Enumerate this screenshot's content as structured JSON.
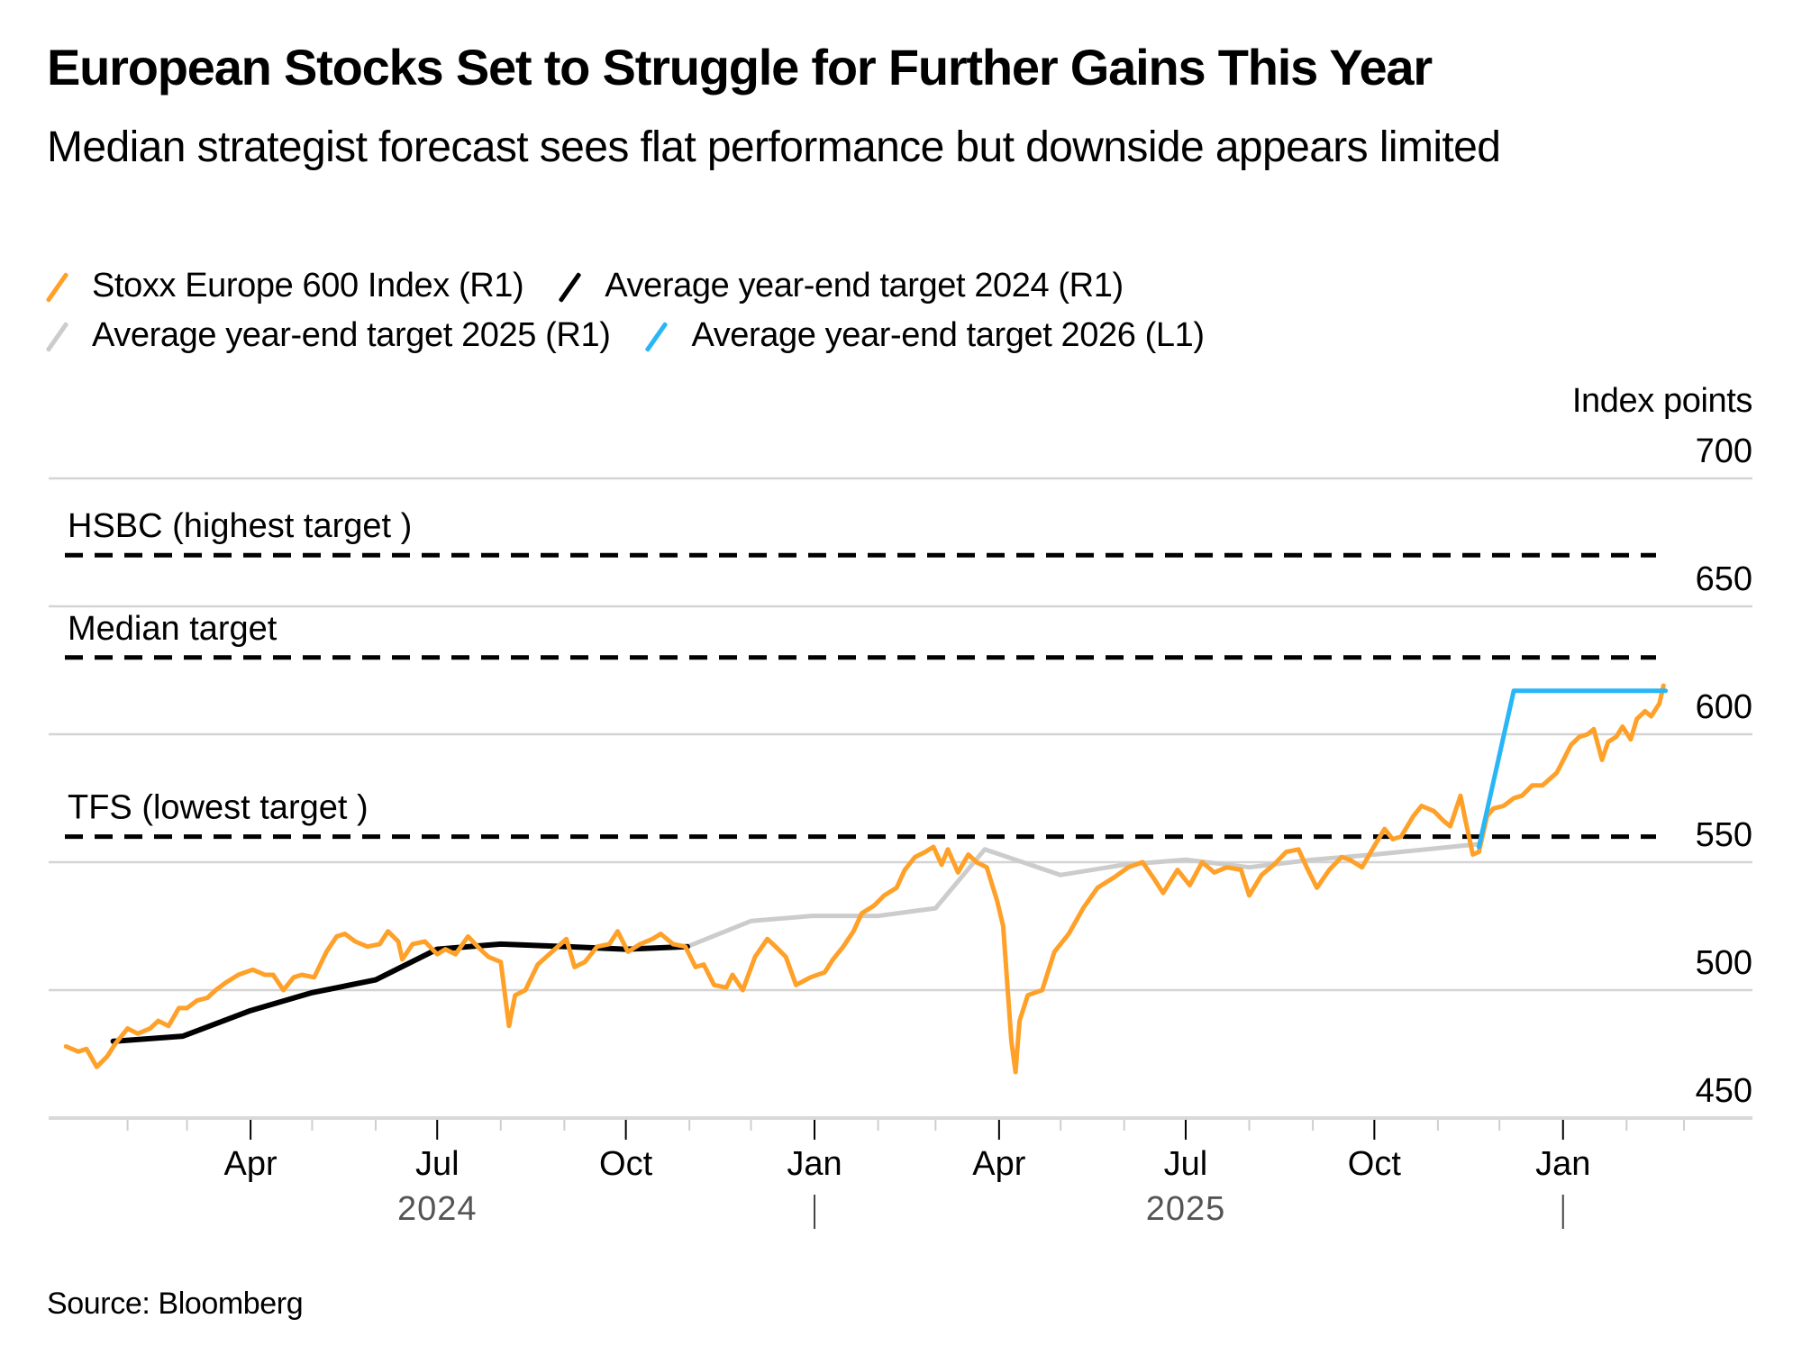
{
  "header": {
    "title": "European Stocks Set to Struggle for Further Gains This Year",
    "subtitle": "Median strategist forecast sees flat performance but downside appears limited"
  },
  "legend": [
    {
      "label": "Stoxx Europe 600 Index (R1)",
      "color": "#ffa028",
      "row": 0
    },
    {
      "label": "Average year-end target 2024 (R1)",
      "color": "#000000",
      "row": 0
    },
    {
      "label": "Average year-end target 2025 (R1)",
      "color": "#cccccc",
      "row": 1
    },
    {
      "label": "Average year-end target 2026 (L1)",
      "color": "#29b6f6",
      "row": 1
    }
  ],
  "axis": {
    "unit_label": "Index points"
  },
  "footer": {
    "source": "Source: Bloomberg"
  },
  "chart_data": {
    "type": "line",
    "title": "European Stocks Set to Struggle for Further Gains This Year",
    "subtitle": "Median strategist forecast sees flat performance but downside appears limited",
    "ylabel": "Index points",
    "xlabel": "",
    "ylim": [
      450,
      700
    ],
    "yticks": [
      700,
      650,
      600,
      550,
      500,
      450
    ],
    "y_axis_side": "right",
    "xlim": [
      "2024-01-01",
      "2026-02-28"
    ],
    "x_ticks": [
      {
        "date": "2024-04-01",
        "label": "Apr"
      },
      {
        "date": "2024-07-01",
        "label": "Jul"
      },
      {
        "date": "2024-10-01",
        "label": "Oct"
      },
      {
        "date": "2025-01-01",
        "label": "Jan"
      },
      {
        "date": "2025-04-01",
        "label": "Apr"
      },
      {
        "date": "2025-07-01",
        "label": "Jul"
      },
      {
        "date": "2025-10-01",
        "label": "Oct"
      },
      {
        "date": "2026-01-01",
        "label": "Jan"
      }
    ],
    "year_labels": [
      {
        "date": "2024-07-01",
        "label": "2024"
      },
      {
        "date": "2025-07-01",
        "label": "2025"
      }
    ],
    "year_separators": [
      "2025-01-01",
      "2026-01-01"
    ],
    "grid": true,
    "legend_position": "top-left",
    "reference_lines": [
      {
        "label": "HSBC (highest target )",
        "value": 670
      },
      {
        "label": "Median target",
        "value": 630
      },
      {
        "label": "TFS (lowest target )",
        "value": 560
      }
    ],
    "series": [
      {
        "name": "Stoxx Europe 600 Index (R1)",
        "color": "#ffa028",
        "points": [
          [
            "2024-01-02",
            478
          ],
          [
            "2024-01-08",
            476
          ],
          [
            "2024-01-12",
            477
          ],
          [
            "2024-01-17",
            470
          ],
          [
            "2024-01-22",
            474
          ],
          [
            "2024-01-26",
            479
          ],
          [
            "2024-02-01",
            485
          ],
          [
            "2024-02-06",
            483
          ],
          [
            "2024-02-12",
            485
          ],
          [
            "2024-02-16",
            488
          ],
          [
            "2024-02-21",
            486
          ],
          [
            "2024-02-26",
            493
          ],
          [
            "2024-03-01",
            493
          ],
          [
            "2024-03-06",
            496
          ],
          [
            "2024-03-11",
            497
          ],
          [
            "2024-03-15",
            500
          ],
          [
            "2024-03-20",
            503
          ],
          [
            "2024-03-26",
            506
          ],
          [
            "2024-04-02",
            508
          ],
          [
            "2024-04-08",
            506
          ],
          [
            "2024-04-12",
            506
          ],
          [
            "2024-04-17",
            500
          ],
          [
            "2024-04-22",
            505
          ],
          [
            "2024-04-26",
            506
          ],
          [
            "2024-05-02",
            505
          ],
          [
            "2024-05-08",
            515
          ],
          [
            "2024-05-13",
            521
          ],
          [
            "2024-05-17",
            522
          ],
          [
            "2024-05-22",
            519
          ],
          [
            "2024-05-28",
            517
          ],
          [
            "2024-06-03",
            518
          ],
          [
            "2024-06-07",
            523
          ],
          [
            "2024-06-12",
            519
          ],
          [
            "2024-06-14",
            512
          ],
          [
            "2024-06-19",
            518
          ],
          [
            "2024-06-25",
            519
          ],
          [
            "2024-07-01",
            514
          ],
          [
            "2024-07-05",
            516
          ],
          [
            "2024-07-10",
            514
          ],
          [
            "2024-07-16",
            521
          ],
          [
            "2024-07-22",
            516
          ],
          [
            "2024-07-26",
            513
          ],
          [
            "2024-08-01",
            511
          ],
          [
            "2024-08-05",
            486
          ],
          [
            "2024-08-08",
            498
          ],
          [
            "2024-08-13",
            500
          ],
          [
            "2024-08-19",
            510
          ],
          [
            "2024-08-26",
            515
          ],
          [
            "2024-09-02",
            520
          ],
          [
            "2024-09-06",
            509
          ],
          [
            "2024-09-11",
            511
          ],
          [
            "2024-09-17",
            517
          ],
          [
            "2024-09-23",
            518
          ],
          [
            "2024-09-27",
            523
          ],
          [
            "2024-10-02",
            515
          ],
          [
            "2024-10-08",
            518
          ],
          [
            "2024-10-14",
            520
          ],
          [
            "2024-10-18",
            522
          ],
          [
            "2024-10-24",
            518
          ],
          [
            "2024-10-30",
            517
          ],
          [
            "2024-11-04",
            509
          ],
          [
            "2024-11-08",
            510
          ],
          [
            "2024-11-13",
            502
          ],
          [
            "2024-11-19",
            501
          ],
          [
            "2024-11-22",
            506
          ],
          [
            "2024-11-27",
            500
          ],
          [
            "2024-12-03",
            513
          ],
          [
            "2024-12-09",
            520
          ],
          [
            "2024-12-13",
            517
          ],
          [
            "2024-12-18",
            513
          ],
          [
            "2024-12-23",
            502
          ],
          [
            "2024-12-30",
            505
          ],
          [
            "2025-01-06",
            507
          ],
          [
            "2025-01-10",
            512
          ],
          [
            "2025-01-15",
            517
          ],
          [
            "2025-01-20",
            523
          ],
          [
            "2025-01-24",
            530
          ],
          [
            "2025-01-30",
            533
          ],
          [
            "2025-02-04",
            537
          ],
          [
            "2025-02-10",
            540
          ],
          [
            "2025-02-14",
            547
          ],
          [
            "2025-02-19",
            552
          ],
          [
            "2025-02-24",
            554
          ],
          [
            "2025-02-28",
            556
          ],
          [
            "2025-03-04",
            549
          ],
          [
            "2025-03-07",
            555
          ],
          [
            "2025-03-12",
            546
          ],
          [
            "2025-03-17",
            553
          ],
          [
            "2025-03-21",
            550
          ],
          [
            "2025-03-26",
            548
          ],
          [
            "2025-03-31",
            535
          ],
          [
            "2025-04-03",
            525
          ],
          [
            "2025-04-07",
            480
          ],
          [
            "2025-04-09",
            468
          ],
          [
            "2025-04-11",
            488
          ],
          [
            "2025-04-15",
            498
          ],
          [
            "2025-04-22",
            500
          ],
          [
            "2025-04-28",
            515
          ],
          [
            "2025-05-05",
            522
          ],
          [
            "2025-05-12",
            532
          ],
          [
            "2025-05-19",
            540
          ],
          [
            "2025-05-27",
            544
          ],
          [
            "2025-06-03",
            548
          ],
          [
            "2025-06-10",
            550
          ],
          [
            "2025-06-16",
            543
          ],
          [
            "2025-06-20",
            538
          ],
          [
            "2025-06-27",
            547
          ],
          [
            "2025-07-03",
            541
          ],
          [
            "2025-07-09",
            550
          ],
          [
            "2025-07-15",
            546
          ],
          [
            "2025-07-21",
            548
          ],
          [
            "2025-07-28",
            547
          ],
          [
            "2025-08-01",
            537
          ],
          [
            "2025-08-07",
            545
          ],
          [
            "2025-08-13",
            549
          ],
          [
            "2025-08-19",
            554
          ],
          [
            "2025-08-25",
            555
          ],
          [
            "2025-08-29",
            548
          ],
          [
            "2025-09-03",
            540
          ],
          [
            "2025-09-09",
            547
          ],
          [
            "2025-09-15",
            552
          ],
          [
            "2025-09-19",
            551
          ],
          [
            "2025-09-25",
            548
          ],
          [
            "2025-09-30",
            555
          ],
          [
            "2025-10-06",
            563
          ],
          [
            "2025-10-10",
            559
          ],
          [
            "2025-10-14",
            560
          ],
          [
            "2025-10-20",
            568
          ],
          [
            "2025-10-24",
            572
          ],
          [
            "2025-10-30",
            570
          ],
          [
            "2025-11-04",
            566
          ],
          [
            "2025-11-07",
            564
          ],
          [
            "2025-11-12",
            576
          ],
          [
            "2025-11-14",
            568
          ],
          [
            "2025-11-18",
            553
          ],
          [
            "2025-11-21",
            554
          ],
          [
            "2025-11-25",
            568
          ],
          [
            "2025-11-28",
            571
          ],
          [
            "2025-12-03",
            572
          ],
          [
            "2025-12-08",
            575
          ],
          [
            "2025-12-12",
            576
          ],
          [
            "2025-12-17",
            580
          ],
          [
            "2025-12-22",
            580
          ],
          [
            "2025-12-29",
            585
          ],
          [
            "2026-01-05",
            596
          ],
          [
            "2026-01-09",
            599
          ],
          [
            "2026-01-13",
            600
          ],
          [
            "2026-01-16",
            602
          ],
          [
            "2026-01-20",
            590
          ],
          [
            "2026-01-23",
            597
          ],
          [
            "2026-01-27",
            599
          ],
          [
            "2026-01-30",
            603
          ],
          [
            "2026-02-03",
            598
          ],
          [
            "2026-02-06",
            606
          ],
          [
            "2026-02-10",
            609
          ],
          [
            "2026-02-13",
            607
          ],
          [
            "2026-02-17",
            612
          ],
          [
            "2026-02-19",
            619
          ]
        ]
      },
      {
        "name": "Average year-end target 2024 (R1)",
        "color": "#000000",
        "points": [
          [
            "2024-01-25",
            480
          ],
          [
            "2024-02-28",
            482
          ],
          [
            "2024-04-01",
            492
          ],
          [
            "2024-05-01",
            499
          ],
          [
            "2024-06-01",
            504
          ],
          [
            "2024-07-01",
            516
          ],
          [
            "2024-08-01",
            518
          ],
          [
            "2024-09-02",
            517
          ],
          [
            "2024-10-01",
            516
          ],
          [
            "2024-10-31",
            517
          ]
        ]
      },
      {
        "name": "Average year-end target 2025 (R1)",
        "color": "#cccccc",
        "points": [
          [
            "2024-10-31",
            517
          ],
          [
            "2024-12-01",
            527
          ],
          [
            "2024-12-31",
            529
          ],
          [
            "2025-02-01",
            529
          ],
          [
            "2025-03-01",
            532
          ],
          [
            "2025-03-25",
            555
          ],
          [
            "2025-05-01",
            545
          ],
          [
            "2025-06-01",
            549
          ],
          [
            "2025-07-01",
            551
          ],
          [
            "2025-08-01",
            548
          ],
          [
            "2025-09-01",
            551
          ],
          [
            "2025-10-01",
            553
          ],
          [
            "2025-11-20",
            557
          ]
        ]
      },
      {
        "name": "Average year-end target 2026 (L1)",
        "color": "#29b6f6",
        "points": [
          [
            "2025-11-21",
            556
          ],
          [
            "2025-12-08",
            617
          ],
          [
            "2026-02-20",
            617
          ]
        ]
      }
    ]
  }
}
